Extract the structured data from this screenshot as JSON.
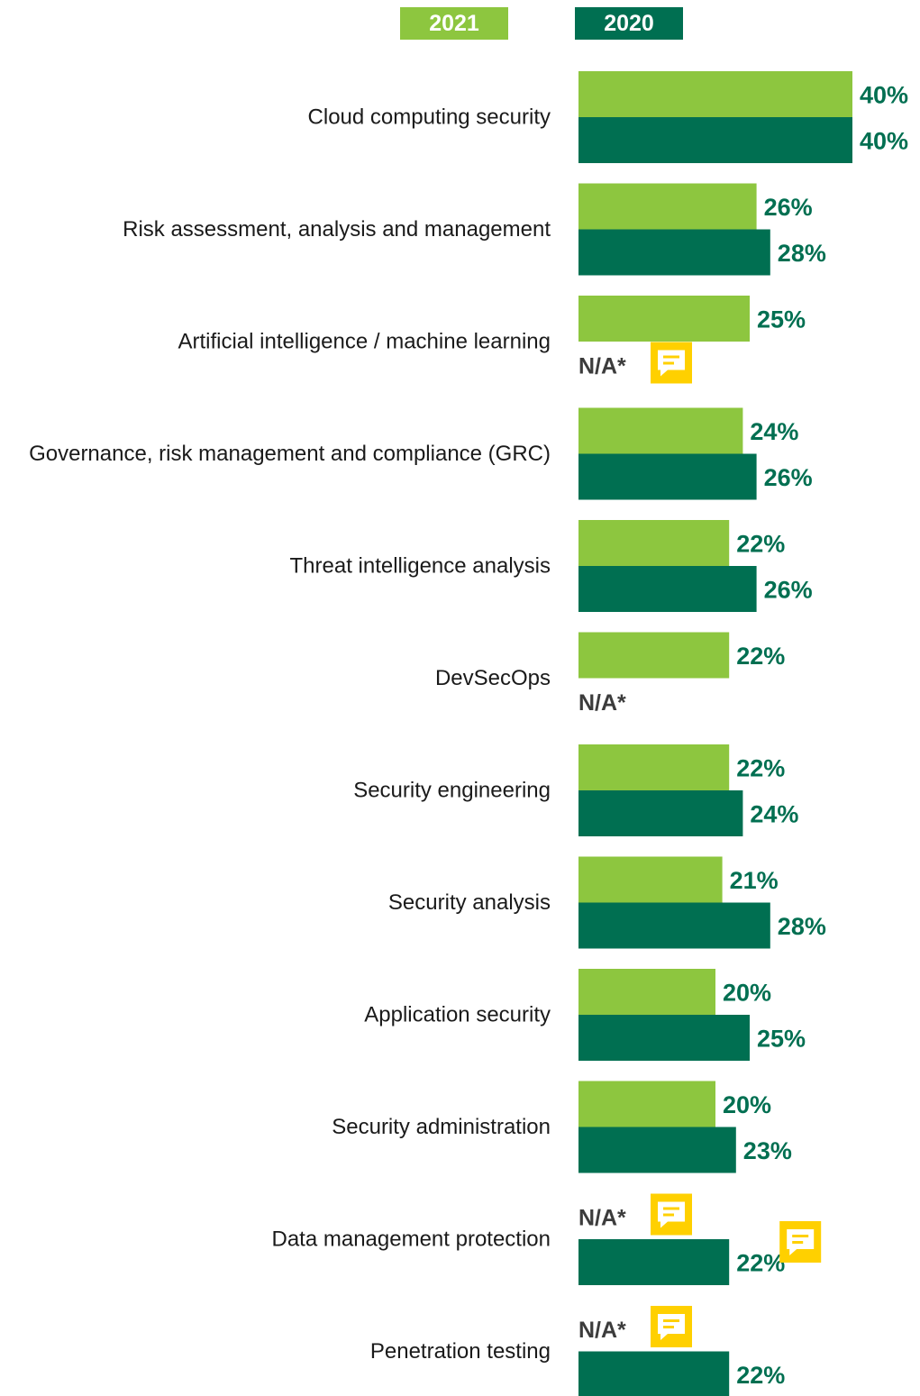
{
  "chart_data": {
    "type": "bar",
    "orientation": "horizontal",
    "legend": {
      "placement": "top",
      "entries": [
        "2021",
        "2020"
      ]
    },
    "categories": [
      "Cloud computing security",
      "Risk assessment, analysis and management",
      "Artificial intelligence / machine learning",
      "Governance, risk management and compliance (GRC)",
      "Threat intelligence analysis",
      "DevSecOps",
      "Security engineering",
      "Security analysis",
      "Application security",
      "Security administration",
      "Data management protection",
      "Penetration testing"
    ],
    "series": [
      {
        "name": "2021",
        "color": "#8dc63f",
        "values": [
          40,
          26,
          25,
          24,
          22,
          22,
          22,
          21,
          20,
          20,
          null,
          null
        ]
      },
      {
        "name": "2020",
        "color": "#006f51",
        "values": [
          40,
          28,
          null,
          26,
          26,
          null,
          24,
          28,
          25,
          23,
          22,
          22
        ]
      }
    ],
    "unit": "%",
    "na_label": "N/A*",
    "value_label_color": "#006f51",
    "na_label_color": "#3c3c3c",
    "note_icon": {
      "name": "speech-bubble-icon",
      "color": "#ffd000"
    },
    "note_icons_at": [
      {
        "category": 2,
        "anchor": "na-2020"
      },
      {
        "category": 10,
        "anchor": "na-2021"
      },
      {
        "category": 10,
        "anchor": "value-2020"
      },
      {
        "category": 11,
        "anchor": "na-2021"
      }
    ]
  }
}
